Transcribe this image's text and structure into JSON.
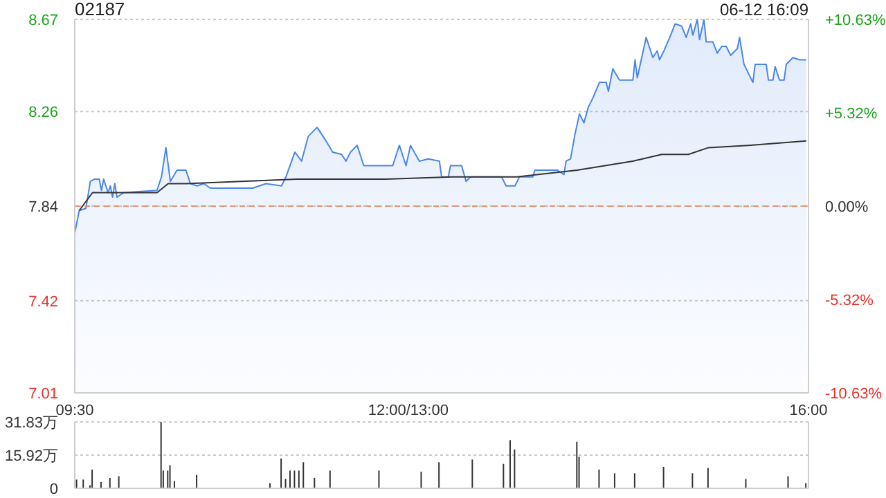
{
  "chart_data": [
    {
      "type": "area",
      "title": "02187",
      "annotations": [
        "06-12 16:09"
      ],
      "categories": [
        "09:30",
        null,
        null,
        null,
        null,
        null,
        null,
        null,
        null,
        null,
        null,
        null,
        null,
        null,
        null,
        null,
        null,
        null,
        null,
        null,
        null,
        null,
        null,
        null,
        null,
        null,
        null,
        null,
        null,
        null,
        null,
        null,
        null,
        null,
        null,
        null,
        null,
        null,
        null,
        null,
        null,
        null,
        null,
        null,
        null,
        null,
        null,
        null,
        null,
        null,
        null,
        null,
        null,
        null,
        null,
        null,
        null,
        null,
        null,
        null,
        null,
        null,
        null,
        null,
        null,
        null,
        null,
        null,
        null,
        null,
        null,
        null,
        null,
        null,
        null,
        null,
        null,
        null,
        null,
        null,
        null,
        null,
        null,
        null,
        null,
        null,
        null,
        null,
        null,
        null,
        null,
        null,
        null,
        null,
        null,
        null,
        null,
        null,
        null,
        null,
        null,
        null,
        null,
        null,
        null,
        null,
        null,
        null,
        null,
        null,
        null,
        null,
        null,
        null,
        null,
        null,
        null,
        null,
        null,
        null,
        null,
        null,
        null,
        null,
        null,
        null,
        null,
        null,
        null,
        null,
        null,
        null,
        null,
        null,
        null,
        null,
        null,
        null,
        null,
        null,
        null,
        null,
        null,
        null,
        null,
        null,
        null,
        null,
        null,
        null,
        "12:00/13:00",
        null,
        null,
        null,
        null,
        null,
        null,
        null,
        null,
        null,
        null,
        null,
        null,
        null,
        null,
        null,
        null,
        null,
        null,
        null,
        null,
        null,
        null,
        null,
        null,
        null,
        null,
        null,
        null,
        null,
        null,
        null,
        null,
        null,
        null,
        null,
        null,
        null,
        null,
        null,
        null,
        null,
        null,
        null,
        null,
        null,
        null,
        null,
        null,
        null,
        null,
        null,
        null,
        null,
        null,
        null,
        null,
        null,
        null,
        null,
        null,
        null,
        null,
        null,
        null,
        null,
        null,
        null,
        null,
        null,
        null,
        null,
        null,
        null,
        null,
        null,
        null,
        null,
        null,
        null,
        null,
        null,
        null,
        null,
        null,
        null,
        null,
        null,
        null,
        null,
        null,
        null,
        null,
        null,
        null,
        null,
        null,
        null,
        null,
        null,
        null,
        null,
        null,
        null,
        null,
        null,
        null,
        null,
        null,
        null,
        null,
        null,
        null,
        null,
        null,
        null,
        null,
        null,
        null,
        null,
        null,
        null,
        null,
        null,
        null,
        null,
        null,
        null,
        null,
        null,
        null,
        null,
        null,
        null,
        null,
        null,
        null,
        null,
        null,
        null,
        null,
        null,
        null,
        null,
        null,
        null,
        null,
        null,
        null,
        null,
        null,
        null,
        null,
        null,
        null,
        null,
        null,
        null,
        null,
        null,
        null,
        null,
        null,
        null,
        null,
        null,
        null,
        null,
        null,
        null,
        null,
        null,
        null,
        null,
        null,
        null,
        null,
        null,
        null,
        null,
        "16:00"
      ],
      "ylim": [
        7.01,
        8.67
      ],
      "yticks": [
        7.01,
        7.42,
        7.84,
        8.26,
        8.67
      ],
      "y2lim": [
        -10.63,
        10.63
      ],
      "y2ticks": [
        {
          "value": -10.63,
          "label": "-10.63%"
        },
        {
          "value": -5.32,
          "label": "-5.32%"
        },
        {
          "value": 0,
          "label": "0.00%"
        },
        {
          "value": 5.32,
          "label": "+5.32%"
        },
        {
          "value": 10.63,
          "label": "+10.63%"
        }
      ],
      "grid": "y",
      "marker": "none",
      "ref_lines": [
        {
          "axis": "y",
          "value": 7.84,
          "color": "#e8936a",
          "line_style": "dashed"
        }
      ],
      "series": [
        {
          "color": "#4a86e8",
          "values": [
            7.72,
            null,
            7.82,
            null,
            null,
            7.83,
            null,
            7.95,
            null,
            7.96,
            null,
            7.96,
            7.91,
            7.96,
            null,
            7.9,
            7.93,
            7.88,
            7.94,
            7.88,
            null,
            null,
            7.9,
            null,
            null,
            null,
            null,
            null,
            null,
            null,
            null,
            null,
            null,
            null,
            null,
            null,
            null,
            7.91,
            null,
            7.97,
            null,
            8.1,
            null,
            7.95,
            null,
            null,
            8.0,
            null,
            null,
            null,
            8.0,
            null,
            7.94,
            null,
            null,
            7.93,
            null,
            null,
            7.94,
            null,
            null,
            7.92,
            null,
            null,
            null,
            null,
            null,
            null,
            null,
            null,
            null,
            null,
            null,
            null,
            null,
            null,
            null,
            null,
            null,
            null,
            7.92,
            null,
            null,
            null,
            null,
            null,
            7.94,
            null,
            null,
            null,
            null,
            null,
            null,
            7.93,
            null,
            7.97,
            null,
            null,
            null,
            8.08,
            null,
            null,
            8.04,
            null,
            null,
            8.15,
            null,
            null,
            null,
            8.19,
            null,
            null,
            null,
            8.13,
            null,
            null,
            8.08,
            null,
            null,
            null,
            8.07,
            null,
            8.04,
            null,
            8.08,
            null,
            null,
            8.11,
            null,
            null,
            8.02,
            null,
            null,
            null,
            null,
            null,
            null,
            null,
            null,
            null,
            null,
            null,
            null,
            8.02,
            null,
            null,
            8.11,
            null,
            null,
            8.02,
            null,
            8.11,
            null,
            null,
            null,
            8.04,
            null,
            null,
            null,
            8.05,
            null,
            null,
            null,
            null,
            8.04,
            7.97,
            null,
            null,
            7.97,
            8.02,
            null,
            null,
            null,
            null,
            8.02,
            null,
            7.95,
            null,
            7.97,
            null,
            null,
            null,
            null,
            null,
            null,
            null,
            null,
            null,
            null,
            null,
            null,
            null,
            7.97,
            null,
            7.93,
            null,
            null,
            null,
            7.93,
            null,
            7.97,
            null,
            null,
            null,
            null,
            null,
            7.97,
            8.0,
            null,
            null,
            null,
            null,
            null,
            null,
            null,
            null,
            null,
            8.0,
            null,
            null,
            7.98,
            8.04,
            null,
            8.05,
            null,
            8.16,
            null,
            8.25,
            null,
            8.21,
            null,
            8.28,
            null,
            8.32,
            null,
            null,
            8.39,
            null,
            null,
            8.39,
            8.35,
            null,
            8.45,
            null,
            null,
            8.4,
            null,
            null,
            null,
            null,
            null,
            8.4,
            8.49,
            8.41,
            null,
            null,
            null,
            8.59,
            null,
            null,
            8.5,
            null,
            8.53,
            8.49,
            null,
            8.53,
            null,
            null,
            8.6,
            null,
            8.65,
            null,
            null,
            8.64,
            null,
            8.59,
            null,
            8.65,
            8.6,
            null,
            8.67,
            8.58,
            null,
            8.67,
            8.57,
            null,
            null,
            8.57,
            null,
            8.52,
            null,
            8.55,
            null,
            8.55,
            null,
            8.51,
            null,
            null,
            8.54,
            8.59,
            null,
            8.47,
            null,
            8.43,
            null,
            8.39,
            8.47,
            null,
            null,
            null,
            null,
            8.47,
            8.4,
            null,
            8.4,
            8.46,
            null,
            8.4,
            null,
            8.4,
            8.47,
            null,
            null,
            8.5,
            null,
            null,
            8.49,
            null,
            null,
            8.49,
            null
          ]
        },
        {
          "type": "line",
          "color": "#333333",
          "values": [
            null,
            null,
            7.82,
            null,
            null,
            null,
            null,
            null,
            7.9,
            null,
            null,
            null,
            null,
            null,
            null,
            null,
            null,
            null,
            null,
            null,
            null,
            null,
            null,
            null,
            null,
            null,
            null,
            null,
            null,
            null,
            null,
            null,
            null,
            null,
            null,
            null,
            null,
            7.9,
            null,
            null,
            null,
            null,
            7.94,
            null,
            null,
            null,
            null,
            null,
            null,
            null,
            7.94,
            null,
            null,
            null,
            null,
            null,
            null,
            null,
            null,
            null,
            null,
            null,
            null,
            null,
            null,
            null,
            null,
            null,
            null,
            null,
            null,
            null,
            null,
            null,
            null,
            null,
            null,
            null,
            null,
            null,
            null,
            null,
            null,
            null,
            null,
            null,
            null,
            null,
            null,
            null,
            null,
            null,
            null,
            null,
            null,
            null,
            null,
            null,
            null,
            null,
            7.96,
            null,
            null,
            null,
            null,
            null,
            null,
            null,
            null,
            null,
            null,
            null,
            null,
            null,
            null,
            null,
            null,
            null,
            null,
            null,
            null,
            null,
            null,
            null,
            null,
            null,
            null,
            null,
            null,
            null,
            null,
            null,
            null,
            null,
            null,
            null,
            null,
            null,
            null,
            null,
            7.96,
            null,
            null,
            null,
            null,
            null,
            null,
            null,
            null,
            null,
            null,
            null,
            null,
            null,
            null,
            null,
            null,
            null,
            null,
            null,
            null,
            null,
            null,
            null,
            null,
            null,
            null,
            null,
            null,
            null,
            7.97,
            null,
            null,
            null,
            null,
            null,
            null,
            null,
            null,
            null,
            null,
            null,
            null,
            null,
            null,
            null,
            null,
            null,
            null,
            null,
            null,
            null,
            null,
            null,
            null,
            null,
            null,
            null,
            null,
            7.97,
            null,
            null,
            null,
            null,
            null,
            null,
            null,
            null,
            null,
            null,
            null,
            null,
            null,
            null,
            null,
            null,
            null,
            null,
            null,
            null,
            null,
            null,
            null,
            null,
            null,
            null,
            8.0,
            null,
            null,
            null,
            null,
            null,
            null,
            null,
            null,
            null,
            null,
            null,
            null,
            null,
            null,
            null,
            null,
            null,
            null,
            null,
            null,
            null,
            null,
            null,
            null,
            8.04,
            null,
            null,
            null,
            null,
            null,
            null,
            null,
            null,
            null,
            null,
            null,
            null,
            8.07,
            null,
            null,
            null,
            null,
            null,
            null,
            null,
            null,
            null,
            null,
            null,
            8.07,
            null,
            null,
            null,
            null,
            null,
            null,
            null,
            null,
            8.1,
            null,
            null,
            null,
            null,
            null,
            null,
            null,
            null,
            null,
            null,
            null,
            null,
            null,
            null,
            null,
            null,
            null,
            8.11,
            null,
            null,
            null,
            null,
            null,
            null,
            null,
            null,
            null,
            null,
            null,
            null,
            null,
            null,
            null,
            null,
            null,
            null,
            null,
            null,
            null,
            null,
            null,
            null,
            null,
            8.13,
            null
          ]
        }
      ]
    },
    {
      "type": "bar",
      "categories": [
        null,
        null,
        null,
        null,
        null,
        null,
        null,
        null,
        null,
        null,
        null,
        null,
        null,
        null,
        null,
        null,
        null,
        null,
        null,
        null,
        null,
        null,
        null,
        null,
        null,
        null,
        null,
        null,
        null,
        null,
        null,
        null,
        null,
        null,
        null,
        null,
        null,
        null,
        null,
        null,
        null,
        null,
        null,
        null,
        null,
        null,
        null,
        null,
        null,
        null,
        null,
        null,
        null,
        null,
        null,
        null,
        null,
        null,
        null,
        null,
        null,
        null,
        null,
        null,
        null,
        null,
        null,
        null,
        null,
        null,
        null,
        null,
        null,
        null,
        null,
        null,
        null,
        null,
        null,
        null,
        null,
        null,
        null,
        null,
        null,
        null,
        null,
        null,
        null,
        null,
        null,
        null,
        null,
        null,
        null,
        null,
        null,
        null,
        null,
        null,
        null,
        null,
        null,
        null,
        null,
        null,
        null,
        null,
        null,
        null,
        null,
        null,
        null,
        null,
        null,
        null,
        null,
        null,
        null,
        null,
        null,
        null,
        null,
        null,
        null,
        null,
        null,
        null,
        null,
        null,
        null,
        null,
        null,
        null,
        null,
        null,
        null,
        null,
        null,
        null,
        null,
        null,
        null,
        null,
        null,
        null,
        null,
        null,
        null,
        null,
        null,
        null,
        null,
        null,
        null,
        null,
        null,
        null,
        null,
        null,
        null,
        null,
        null,
        null,
        null,
        null,
        null,
        null,
        null,
        null,
        null,
        null,
        null,
        null,
        null,
        null,
        null,
        null,
        null,
        null,
        null,
        null,
        null,
        null,
        null,
        null,
        null,
        null,
        null,
        null,
        null,
        null,
        null,
        null,
        null,
        null,
        null,
        null,
        null,
        null,
        null,
        null,
        null,
        null,
        null,
        null,
        null,
        null,
        null,
        null,
        null,
        null,
        null,
        null,
        null,
        null,
        null,
        null,
        null,
        null,
        null,
        null,
        null,
        null,
        null,
        null,
        null,
        null,
        null,
        null,
        null,
        null,
        null,
        null,
        null,
        null,
        null,
        null,
        null,
        null,
        null,
        null,
        null,
        null,
        null,
        null,
        null,
        null,
        null,
        null,
        null,
        null,
        null,
        null,
        null,
        null,
        null,
        null,
        null,
        null,
        null,
        null,
        null,
        null,
        null,
        null,
        null,
        null,
        null,
        null,
        null,
        null,
        null,
        null,
        null,
        null,
        null,
        null,
        null,
        null,
        null,
        null,
        null,
        null,
        null,
        null,
        null,
        null,
        null,
        null,
        null,
        null,
        null,
        null,
        null,
        null,
        null,
        null,
        null,
        null,
        null,
        null,
        null,
        null,
        null,
        null,
        null,
        null,
        null,
        null,
        null,
        null,
        null,
        null,
        null,
        null,
        null,
        null,
        null,
        null,
        null,
        null,
        null,
        null,
        null,
        null,
        null,
        null,
        null,
        null,
        null
      ],
      "ylim": [
        0,
        31.83
      ],
      "yticks": [
        0,
        {
          "value": 15.92,
          "label": "15.92万"
        },
        {
          "value": 31.83,
          "label": "31.83万"
        }
      ],
      "tick_labels": "y",
      "grid": "y",
      "series": [
        {
          "color": "#333333",
          "values": [
            null,
            4.2,
            null,
            null,
            4.2,
            null,
            null,
            1.5,
            9.0,
            null,
            null,
            null,
            3.0,
            null,
            null,
            null,
            5.0,
            null,
            null,
            null,
            5.8,
            null,
            null,
            null,
            null,
            null,
            null,
            null,
            null,
            null,
            null,
            null,
            null,
            null,
            null,
            null,
            null,
            null,
            null,
            31.8,
            8.5,
            null,
            8.5,
            11.1,
            null,
            3.5,
            null,
            null,
            null,
            null,
            null,
            null,
            null,
            null,
            null,
            6.4,
            null,
            null,
            null,
            null,
            null,
            null,
            null,
            null,
            null,
            null,
            null,
            null,
            null,
            null,
            null,
            null,
            null,
            null,
            null,
            null,
            null,
            null,
            null,
            null,
            null,
            null,
            null,
            null,
            null,
            null,
            null,
            null,
            2.5,
            null,
            null,
            null,
            null,
            14.3,
            null,
            4.5,
            null,
            8.5,
            null,
            8.5,
            null,
            8.5,
            null,
            12.5,
            null,
            null,
            null,
            null,
            5.0,
            null,
            null,
            null,
            null,
            null,
            null,
            8.5,
            null,
            null,
            null,
            null,
            null,
            null,
            null,
            null,
            null,
            null,
            null,
            null,
            null,
            null,
            null,
            null,
            null,
            null,
            null,
            null,
            null,
            8.5,
            null,
            null,
            null,
            null,
            null,
            null,
            null,
            null,
            null,
            null,
            null,
            null,
            null,
            null,
            null,
            null,
            null,
            null,
            8.0,
            null,
            null,
            null,
            null,
            null,
            null,
            null,
            12.5,
            null,
            null,
            null,
            null,
            null,
            null,
            null,
            null,
            null,
            null,
            null,
            null,
            null,
            null,
            13.8,
            null,
            null,
            null,
            null,
            null,
            null,
            null,
            null,
            null,
            null,
            null,
            null,
            null,
            11.7,
            null,
            null,
            23.1,
            null,
            18.6,
            null,
            null,
            null,
            null,
            null,
            null,
            null,
            null,
            null,
            null,
            null,
            null,
            null,
            null,
            null,
            null,
            null,
            null,
            null,
            null,
            null,
            null,
            null,
            null,
            null,
            null,
            null,
            22.3,
            15.1,
            null,
            null,
            null,
            null,
            null,
            null,
            null,
            null,
            9.0,
            null,
            null,
            null,
            null,
            null,
            null,
            7.2,
            null,
            null,
            null,
            null,
            null,
            null,
            null,
            null,
            7.2,
            null,
            null,
            null,
            null,
            null,
            null,
            null,
            null,
            null,
            null,
            null,
            null,
            10.3,
            null,
            null,
            null,
            null,
            null,
            null,
            null,
            null,
            null,
            null,
            null,
            null,
            7.2,
            null,
            null,
            null,
            null,
            null,
            null,
            9.8,
            null,
            null,
            null,
            null,
            null,
            null,
            null,
            null,
            null,
            null,
            null,
            null,
            null,
            null,
            null,
            null,
            4.5,
            null,
            null,
            null,
            null,
            null,
            null,
            null,
            null,
            null,
            null,
            null,
            null,
            null,
            null,
            null,
            null,
            null,
            null,
            5.8,
            null,
            null,
            null,
            null,
            null,
            null,
            null,
            2.5,
            null
          ]
        }
      ]
    }
  ]
}
